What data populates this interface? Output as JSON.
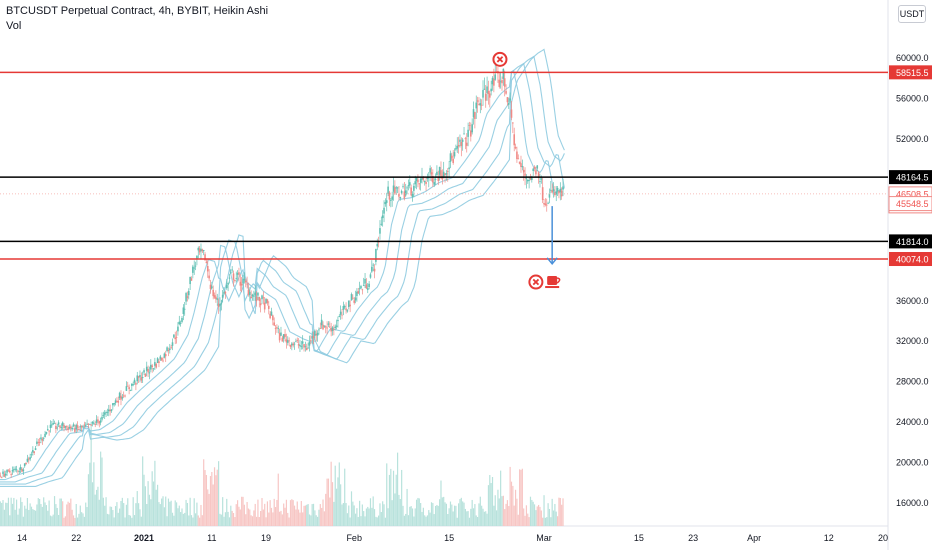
{
  "header": {
    "title": "BTCUSDT Perpetual Contract, 4h, BYBIT, Heikin Ashi",
    "volume_label": "Vol"
  },
  "currency_button": "USDT",
  "colors": {
    "up": "#26a69a",
    "down": "#ef5350",
    "up_candle": "#5fbfb3",
    "down_candle": "#f08a86",
    "ma": "#8fcbe0",
    "resistance": "#e53935",
    "support": "#000000",
    "arrow": "#4a90d9",
    "volume_up": "#b8e2dc",
    "volume_down": "#f7c6c4"
  },
  "chart_data": {
    "type": "candlestick",
    "symbol": "BTCUSDT",
    "interval": "4h",
    "exchange": "BYBIT",
    "style": "Heikin Ashi",
    "y_axis": {
      "ticks": [
        "60000.0",
        "56000.0",
        "52000.0",
        "36000.0",
        "32000.0",
        "28000.0",
        "24000.0",
        "20000.0",
        "16000.0"
      ],
      "tick_values": [
        60000,
        56000,
        52000,
        36000,
        32000,
        28000,
        24000,
        20000,
        16000
      ],
      "range": [
        13500,
        62600
      ]
    },
    "x_axis": {
      "ticks": [
        "14",
        "22",
        "2021",
        "11",
        "19",
        "Feb",
        "15",
        "Mar",
        "15",
        "23",
        "Apr",
        "12",
        "20"
      ],
      "tick_bold": [
        false,
        false,
        true,
        false,
        false,
        false,
        false,
        false,
        false,
        false,
        false,
        false,
        false
      ],
      "tick_days": [
        14,
        22,
        32,
        42,
        50,
        63,
        77,
        91,
        105,
        113,
        122,
        133,
        141
      ],
      "day_origin_note": ""
    },
    "horizontal_levels": [
      {
        "price": 58515.5,
        "label": "58515.5",
        "color": "resistance",
        "width": 1.5
      },
      {
        "price": 48164.5,
        "label": "48164.5",
        "color": "support",
        "width": 1.5
      },
      {
        "price": 41814.0,
        "label": "41814.0",
        "color": "support",
        "width": 1.5
      },
      {
        "price": 40074.0,
        "label": "40074.0",
        "color": "resistance",
        "width": 1.5
      }
    ],
    "current_price": {
      "price": 46508.5,
      "label": "46508.5",
      "countdown": "45:26"
    },
    "other_price_label": {
      "price": 45548.5,
      "label": "45548.5"
    },
    "price_path": [
      [
        10,
        18500
      ],
      [
        12,
        19000
      ],
      [
        14,
        19400
      ],
      [
        16,
        21500
      ],
      [
        18,
        23400
      ],
      [
        20,
        23600
      ],
      [
        22,
        23300
      ],
      [
        24,
        23500
      ],
      [
        26,
        24400
      ],
      [
        28,
        26200
      ],
      [
        30,
        27500
      ],
      [
        32,
        28700
      ],
      [
        33,
        29300
      ],
      [
        35,
        30600
      ],
      [
        37,
        33000
      ],
      [
        38,
        35500
      ],
      [
        39,
        38500
      ],
      [
        40,
        40500
      ],
      [
        41,
        40300
      ],
      [
        42,
        37000
      ],
      [
        43,
        35500
      ],
      [
        44,
        37000
      ],
      [
        45,
        38600
      ],
      [
        47,
        37500
      ],
      [
        48,
        36500
      ],
      [
        50,
        35600
      ],
      [
        51,
        34000
      ],
      [
        52,
        32500
      ],
      [
        54,
        31800
      ],
      [
        56,
        31300
      ],
      [
        57,
        32500
      ],
      [
        58,
        33600
      ],
      [
        60,
        33300
      ],
      [
        62,
        35500
      ],
      [
        64,
        37200
      ],
      [
        65,
        37800
      ],
      [
        66,
        39500
      ],
      [
        67,
        44000
      ],
      [
        68,
        46500
      ],
      [
        70,
        46700
      ],
      [
        72,
        47300
      ],
      [
        74,
        48200
      ],
      [
        76,
        48700
      ],
      [
        78,
        50500
      ],
      [
        80,
        52500
      ],
      [
        81,
        55000
      ],
      [
        83,
        57000
      ],
      [
        84,
        57600
      ],
      [
        85,
        58000
      ],
      [
        86,
        55000
      ],
      [
        87,
        50000
      ],
      [
        88,
        48500
      ],
      [
        89,
        48000
      ],
      [
        90,
        49500
      ],
      [
        91,
        46000
      ],
      [
        92,
        46400
      ],
      [
        93,
        46600
      ],
      [
        94,
        46500
      ]
    ],
    "moving_averages": [
      {
        "lag_days": 1.5
      },
      {
        "lag_days": 3
      },
      {
        "lag_days": 4.5
      },
      {
        "lag_days": 6
      }
    ],
    "annotations": [
      {
        "type": "x-circle",
        "at_day": 84.5,
        "price": 59800,
        "color": "resistance"
      },
      {
        "type": "arrow-down",
        "at_day": 92.2,
        "from_price": 45300,
        "to_price": 39600,
        "color": "arrow"
      },
      {
        "type": "x-circle",
        "at_day": 89.8,
        "price": 37800,
        "color": "resistance"
      },
      {
        "type": "coffee-cup",
        "at_day": 92.2,
        "price": 37800,
        "color": "resistance"
      }
    ],
    "volume": {
      "max_label": "",
      "spikes_days": [
        25,
        33,
        42,
        60,
        69,
        84,
        87
      ]
    }
  }
}
